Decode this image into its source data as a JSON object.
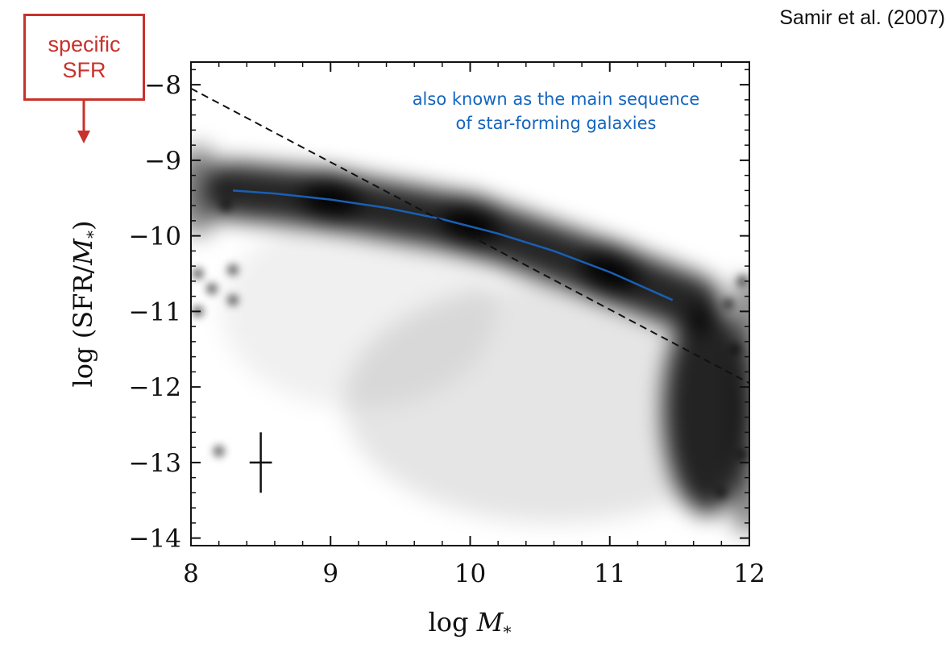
{
  "citation": "Samir et al. (2007)",
  "callout": {
    "line1": "specific",
    "line2": "SFR",
    "color": "#c8322b"
  },
  "annotation": {
    "line1": "also known as the main sequence",
    "line2": "of star-forming galaxies",
    "color": "#1565c0"
  },
  "chart_data": {
    "type": "heatmap",
    "xlabel": "log M*",
    "ylabel": "log (SFR/M*)",
    "xlim": [
      8,
      12
    ],
    "ylim": [
      -14.1,
      -7.7
    ],
    "xticks": [
      "8",
      "9",
      "10",
      "11",
      "12"
    ],
    "yticks": [
      "−8",
      "−9",
      "−10",
      "−11",
      "−12",
      "−13",
      "−14"
    ],
    "series": [
      {
        "type": "line",
        "color": "#1a5fb4",
        "x": [
          8.3,
          8.6,
          9.0,
          9.4,
          9.8,
          10.2,
          10.6,
          11.0,
          11.45
        ],
        "y": [
          -9.4,
          -9.44,
          -9.52,
          -9.63,
          -9.78,
          -9.97,
          -10.2,
          -10.48,
          -10.85
        ]
      },
      {
        "type": "dashed-line",
        "color": "#111111",
        "x": [
          8.0,
          12.0
        ],
        "y": [
          -8.05,
          -11.95
        ]
      },
      {
        "type": "errorbar",
        "x": 8.5,
        "y": -13.0,
        "xerr": 0.08,
        "yerr": 0.4
      }
    ],
    "density": {
      "description": "grey-scale galaxy number density",
      "ridge": {
        "x": [
          8.3,
          9.0,
          10.0,
          11.0,
          11.6
        ],
        "y": [
          -9.4,
          -9.52,
          -9.85,
          -10.48,
          -10.9
        ]
      },
      "quenched_blob": {
        "x": 11.7,
        "y": -12.3
      }
    }
  }
}
